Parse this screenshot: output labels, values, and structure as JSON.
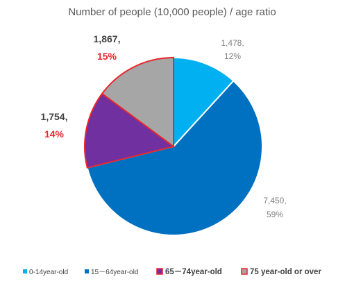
{
  "chart_data": {
    "type": "pie",
    "title": "Number of people (10,000 people) / age ratio",
    "start_angle_deg": 0,
    "direction": "clockwise",
    "slices": [
      {
        "label": "0-14year-old",
        "value": 1478,
        "value_text": "1,478,",
        "percent_text": "12%",
        "color": "#00b0f0",
        "highlight": false
      },
      {
        "label": "15－64year-old",
        "value": 7450,
        "value_text": "7,450,",
        "percent_text": "59%",
        "color": "#0070c0",
        "highlight": false
      },
      {
        "label": "65－74year-old",
        "value": 1754,
        "value_text": "1,754,",
        "percent_text": "14%",
        "color": "#7030a0",
        "highlight": true
      },
      {
        "label": "75 year-old or over",
        "value": 1867,
        "value_text": "1,867,",
        "percent_text": "15%",
        "color": "#a6a6a6",
        "highlight": true
      }
    ],
    "highlight_color": "#e8262c",
    "legend_position": "bottom"
  }
}
